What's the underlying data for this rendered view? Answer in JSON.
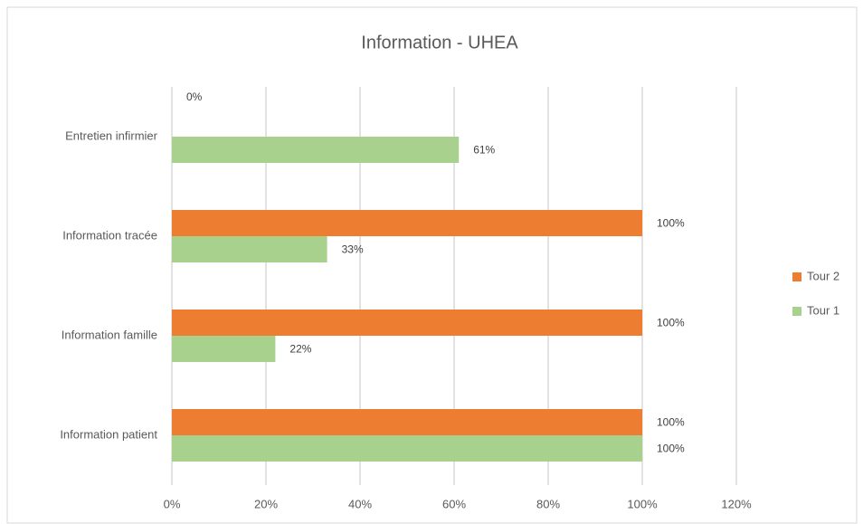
{
  "chart_data": {
    "type": "hbar",
    "title": "Information - UHEA",
    "categories": [
      "Entretien infirmier",
      "Information tracée",
      "Information famille",
      "Information patient"
    ],
    "series": [
      {
        "name": "Tour 2",
        "color": "#ed7d31",
        "values": [
          0,
          100,
          100,
          100
        ],
        "value_labels": [
          "0%",
          "100%",
          "100%",
          "100%"
        ]
      },
      {
        "name": "Tour 1",
        "color": "#a9d18e",
        "values": [
          61,
          33,
          22,
          100
        ],
        "value_labels": [
          "61%",
          "33%",
          "22%",
          "100%"
        ]
      }
    ],
    "xlim": [
      0,
      120
    ],
    "xticks": [
      {
        "value": 0,
        "label": "0%"
      },
      {
        "value": 20,
        "label": "20%"
      },
      {
        "value": 40,
        "label": "40%"
      },
      {
        "value": 60,
        "label": "60%"
      },
      {
        "value": 80,
        "label": "80%"
      },
      {
        "value": 100,
        "label": "100%"
      },
      {
        "value": 120,
        "label": "120%"
      }
    ],
    "grid": true,
    "legend": "right"
  }
}
